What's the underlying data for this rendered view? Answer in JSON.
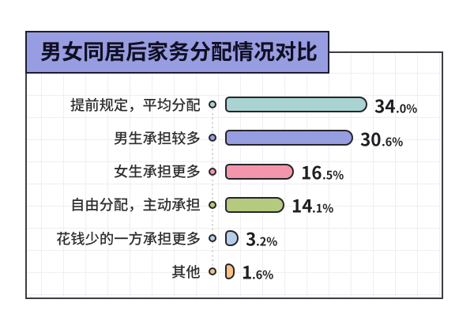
{
  "chart_data": {
    "type": "bar",
    "orientation": "horizontal",
    "title": "男女同居后家务分配情况对比",
    "categories": [
      "提前规定，平均分配",
      "男生承担较多",
      "女生承担更多",
      "自由分配，主动承担",
      "花钱少的一方承担更多",
      "其他"
    ],
    "values": [
      34.0,
      30.6,
      16.5,
      14.1,
      3.2,
      1.6
    ],
    "value_labels": [
      "34.0%",
      "30.6%",
      "16.5%",
      "14.1%",
      "3.2%",
      "1.6%"
    ],
    "unit": "%",
    "colors": [
      "#a9d3d0",
      "#969ee0",
      "#f496ab",
      "#b5ca7e",
      "#b6cee8",
      "#f5c382"
    ],
    "xlim": [
      0,
      40
    ],
    "grid": true,
    "legend": false
  },
  "title_box": {
    "label": "男女同居后家务分配情况对比",
    "bg_color": "#989de1",
    "border_color": "#1d1d31"
  },
  "style": {
    "bar_border_color": "#26262b",
    "frame_border_color": "#3d3d44",
    "label_color": "#2d2d2d",
    "value_color": "#1f1f23"
  }
}
